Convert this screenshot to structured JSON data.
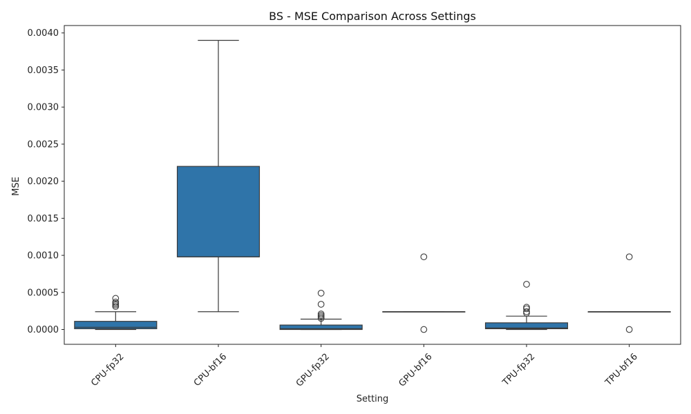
{
  "chart_data": {
    "type": "box",
    "title": "BS - MSE Comparison Across Settings",
    "xlabel": "Setting",
    "ylabel": "MSE",
    "ylim": [
      -0.0002,
      0.0041
    ],
    "y_ticks": [
      0.0,
      0.0005,
      0.001,
      0.0015,
      0.002,
      0.0025,
      0.003,
      0.0035,
      0.004
    ],
    "y_tick_labels": [
      "0.0000",
      "0.0005",
      "0.0010",
      "0.0015",
      "0.0020",
      "0.0025",
      "0.0030",
      "0.0035",
      "0.0040"
    ],
    "box_color": "#2f74a9",
    "edge_color": "#3a3a3a",
    "categories": [
      "CPU-fp32",
      "CPU-bf16",
      "GPU-fp32",
      "GPU-bf16",
      "TPU-fp32",
      "TPU-bf16"
    ],
    "boxes": [
      {
        "category": "CPU-fp32",
        "whisker_low": 0.0,
        "q1": 1e-05,
        "median": 3e-05,
        "q3": 0.00011,
        "whisker_high": 0.00024,
        "outliers": [
          0.00031,
          0.00033,
          0.00035,
          0.00037,
          0.00042
        ]
      },
      {
        "category": "CPU-bf16",
        "whisker_low": 0.00024,
        "q1": 0.00098,
        "median": 0.00098,
        "q3": 0.0022,
        "whisker_high": 0.0039,
        "outliers": []
      },
      {
        "category": "GPU-fp32",
        "whisker_low": 0.0,
        "q1": 0.0,
        "median": 1e-05,
        "q3": 6e-05,
        "whisker_high": 0.00014,
        "outliers": [
          0.00015,
          0.00017,
          0.00019,
          0.00021,
          0.00034,
          0.00049
        ]
      },
      {
        "category": "GPU-bf16",
        "whisker_low": 0.00024,
        "q1": 0.00024,
        "median": 0.00024,
        "q3": 0.00024,
        "whisker_high": 0.00024,
        "outliers": [
          0.0,
          0.00098
        ]
      },
      {
        "category": "TPU-fp32",
        "whisker_low": 0.0,
        "q1": 1e-05,
        "median": 2e-05,
        "q3": 9e-05,
        "whisker_high": 0.00018,
        "outliers": [
          0.00022,
          0.00024,
          0.00028,
          0.0003,
          0.00061
        ]
      },
      {
        "category": "TPU-bf16",
        "whisker_low": 0.00024,
        "q1": 0.00024,
        "median": 0.00024,
        "q3": 0.00024,
        "whisker_high": 0.00024,
        "outliers": [
          0.0,
          0.00098
        ]
      }
    ]
  }
}
